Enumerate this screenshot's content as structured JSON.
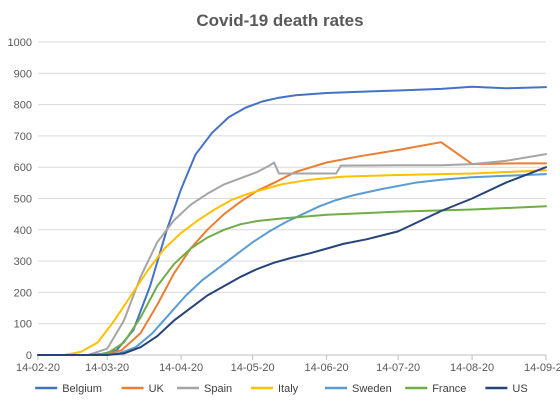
{
  "chart_data": {
    "type": "line",
    "title": "Covid-19 death rates",
    "xlabel": "",
    "ylabel": "",
    "ylim": [
      0,
      1000
    ],
    "y_ticks": [
      0,
      100,
      200,
      300,
      400,
      500,
      600,
      700,
      800,
      900,
      1000
    ],
    "xlim": [
      "2020-02-14",
      "2020-09-14"
    ],
    "x_ticks": [
      "2020-02-14",
      "2020-03-14",
      "2020-04-14",
      "2020-05-14",
      "2020-06-14",
      "2020-07-14",
      "2020-08-14",
      "2020-09-14"
    ],
    "x_tick_labels": [
      "14-02-20",
      "14-03-20",
      "14-04-20",
      "14-05-20",
      "14-06-20",
      "14-07-20",
      "14-08-20",
      "14-09-20"
    ],
    "grid": true,
    "legend_position": "bottom",
    "series": [
      {
        "name": "Belgium",
        "color": "#4472C4",
        "points": [
          [
            "2020-02-14",
            0
          ],
          [
            "2020-03-10",
            0
          ],
          [
            "2020-03-18",
            15
          ],
          [
            "2020-03-25",
            80
          ],
          [
            "2020-04-01",
            220
          ],
          [
            "2020-04-08",
            400
          ],
          [
            "2020-04-14",
            530
          ],
          [
            "2020-04-20",
            640
          ],
          [
            "2020-04-27",
            710
          ],
          [
            "2020-05-04",
            760
          ],
          [
            "2020-05-11",
            790
          ],
          [
            "2020-05-18",
            810
          ],
          [
            "2020-05-25",
            822
          ],
          [
            "2020-06-01",
            830
          ],
          [
            "2020-06-14",
            837
          ],
          [
            "2020-07-01",
            842
          ],
          [
            "2020-07-14",
            845
          ],
          [
            "2020-08-01",
            850
          ],
          [
            "2020-08-14",
            857
          ],
          [
            "2020-08-28",
            852
          ],
          [
            "2020-09-14",
            856
          ]
        ]
      },
      {
        "name": "UK",
        "color": "#ED7D31",
        "points": [
          [
            "2020-02-14",
            0
          ],
          [
            "2020-03-12",
            0
          ],
          [
            "2020-03-20",
            15
          ],
          [
            "2020-03-28",
            70
          ],
          [
            "2020-04-04",
            160
          ],
          [
            "2020-04-11",
            260
          ],
          [
            "2020-04-18",
            340
          ],
          [
            "2020-04-25",
            400
          ],
          [
            "2020-05-02",
            450
          ],
          [
            "2020-05-09",
            490
          ],
          [
            "2020-05-16",
            525
          ],
          [
            "2020-05-23",
            550
          ],
          [
            "2020-06-01",
            585
          ],
          [
            "2020-06-14",
            615
          ],
          [
            "2020-06-28",
            635
          ],
          [
            "2020-07-14",
            655
          ],
          [
            "2020-08-01",
            680
          ],
          [
            "2020-08-14",
            610
          ],
          [
            "2020-09-01",
            612
          ],
          [
            "2020-09-14",
            612
          ]
        ]
      },
      {
        "name": "Spain",
        "color": "#A5A5A5",
        "points": [
          [
            "2020-02-14",
            0
          ],
          [
            "2020-03-06",
            0
          ],
          [
            "2020-03-14",
            20
          ],
          [
            "2020-03-21",
            110
          ],
          [
            "2020-03-28",
            250
          ],
          [
            "2020-04-04",
            360
          ],
          [
            "2020-04-11",
            430
          ],
          [
            "2020-04-18",
            480
          ],
          [
            "2020-04-25",
            515
          ],
          [
            "2020-05-02",
            545
          ],
          [
            "2020-05-09",
            565
          ],
          [
            "2020-05-16",
            585
          ],
          [
            "2020-05-21",
            605
          ],
          [
            "2020-05-23",
            615
          ],
          [
            "2020-05-25",
            580
          ],
          [
            "2020-06-01",
            580
          ],
          [
            "2020-06-14",
            580
          ],
          [
            "2020-06-18",
            580
          ],
          [
            "2020-06-20",
            605
          ],
          [
            "2020-07-14",
            606
          ],
          [
            "2020-08-01",
            606
          ],
          [
            "2020-08-14",
            610
          ],
          [
            "2020-08-28",
            620
          ],
          [
            "2020-09-14",
            642
          ]
        ]
      },
      {
        "name": "Italy",
        "color": "#FFC000",
        "points": [
          [
            "2020-02-14",
            0
          ],
          [
            "2020-02-25",
            0
          ],
          [
            "2020-03-03",
            10
          ],
          [
            "2020-03-10",
            40
          ],
          [
            "2020-03-17",
            110
          ],
          [
            "2020-03-24",
            190
          ],
          [
            "2020-03-31",
            270
          ],
          [
            "2020-04-07",
            340
          ],
          [
            "2020-04-14",
            390
          ],
          [
            "2020-04-21",
            430
          ],
          [
            "2020-04-28",
            465
          ],
          [
            "2020-05-05",
            495
          ],
          [
            "2020-05-12",
            515
          ],
          [
            "2020-05-19",
            530
          ],
          [
            "2020-05-26",
            545
          ],
          [
            "2020-06-07",
            560
          ],
          [
            "2020-06-21",
            570
          ],
          [
            "2020-07-14",
            575
          ],
          [
            "2020-08-14",
            580
          ],
          [
            "2020-09-14",
            590
          ]
        ]
      },
      {
        "name": "Sweden",
        "color": "#5B9BD5",
        "points": [
          [
            "2020-02-14",
            0
          ],
          [
            "2020-03-12",
            0
          ],
          [
            "2020-03-19",
            5
          ],
          [
            "2020-03-26",
            25
          ],
          [
            "2020-04-02",
            70
          ],
          [
            "2020-04-09",
            130
          ],
          [
            "2020-04-16",
            190
          ],
          [
            "2020-04-23",
            240
          ],
          [
            "2020-04-30",
            280
          ],
          [
            "2020-05-07",
            320
          ],
          [
            "2020-05-14",
            360
          ],
          [
            "2020-05-21",
            395
          ],
          [
            "2020-05-28",
            425
          ],
          [
            "2020-06-04",
            450
          ],
          [
            "2020-06-11",
            475
          ],
          [
            "2020-06-18",
            495
          ],
          [
            "2020-06-25",
            510
          ],
          [
            "2020-07-07",
            530
          ],
          [
            "2020-07-21",
            550
          ],
          [
            "2020-08-01",
            560
          ],
          [
            "2020-08-14",
            568
          ],
          [
            "2020-09-14",
            578
          ]
        ]
      },
      {
        "name": "France",
        "color": "#70AD47",
        "points": [
          [
            "2020-02-14",
            0
          ],
          [
            "2020-03-06",
            0
          ],
          [
            "2020-03-14",
            5
          ],
          [
            "2020-03-21",
            40
          ],
          [
            "2020-03-28",
            120
          ],
          [
            "2020-04-04",
            220
          ],
          [
            "2020-04-11",
            290
          ],
          [
            "2020-04-18",
            340
          ],
          [
            "2020-04-25",
            375
          ],
          [
            "2020-05-02",
            400
          ],
          [
            "2020-05-09",
            418
          ],
          [
            "2020-05-16",
            428
          ],
          [
            "2020-05-25",
            435
          ],
          [
            "2020-06-14",
            448
          ],
          [
            "2020-07-14",
            458
          ],
          [
            "2020-08-14",
            465
          ],
          [
            "2020-09-14",
            475
          ]
        ]
      },
      {
        "name": "US",
        "color": "#264478",
        "points": [
          [
            "2020-02-14",
            0
          ],
          [
            "2020-03-14",
            0
          ],
          [
            "2020-03-21",
            5
          ],
          [
            "2020-03-28",
            25
          ],
          [
            "2020-04-04",
            60
          ],
          [
            "2020-04-11",
            110
          ],
          [
            "2020-04-18",
            150
          ],
          [
            "2020-04-25",
            190
          ],
          [
            "2020-05-02",
            220
          ],
          [
            "2020-05-09",
            250
          ],
          [
            "2020-05-16",
            275
          ],
          [
            "2020-05-23",
            295
          ],
          [
            "2020-05-30",
            310
          ],
          [
            "2020-06-07",
            325
          ],
          [
            "2020-06-14",
            340
          ],
          [
            "2020-06-21",
            355
          ],
          [
            "2020-07-01",
            370
          ],
          [
            "2020-07-14",
            395
          ],
          [
            "2020-07-21",
            420
          ],
          [
            "2020-08-01",
            460
          ],
          [
            "2020-08-14",
            500
          ],
          [
            "2020-08-28",
            550
          ],
          [
            "2020-09-14",
            600
          ]
        ]
      }
    ]
  }
}
